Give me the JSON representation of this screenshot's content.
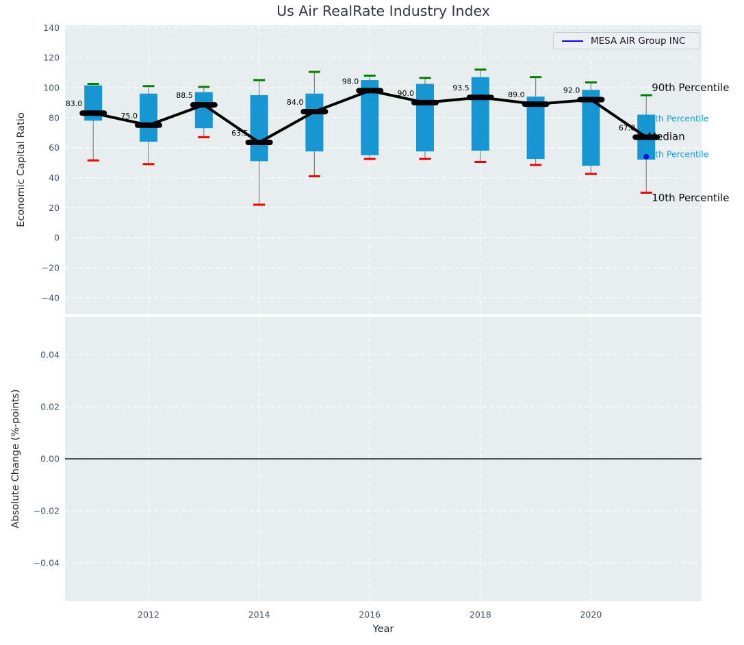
{
  "title": "Us Air RealRate Industry Index",
  "legend": {
    "label": "MESA AIR Group INC",
    "line_color": "#0808f0"
  },
  "axes": {
    "xlabel": "Year"
  },
  "styles": {
    "axes_bg": "#e8edee",
    "grid_color": "#ffffff",
    "tick_color": "#42506a",
    "figure_bg": "#ffffff"
  },
  "chart_data": [
    {
      "type": "box",
      "ylabel": "Economic Capital Ratio",
      "xlim": [
        2010.49,
        2022.0
      ],
      "ylim": [
        -51,
        141.5
      ],
      "grid": true,
      "xticks": [
        {
          "v": 2012,
          "label": "2012"
        },
        {
          "v": 2014,
          "label": "2014"
        },
        {
          "v": 2016,
          "label": "2016"
        },
        {
          "v": 2018,
          "label": "2018"
        },
        {
          "v": 2020,
          "label": "2020"
        }
      ],
      "yticks": [
        {
          "v": 140,
          "label": "140"
        },
        {
          "v": 120,
          "label": "120"
        },
        {
          "v": 100,
          "label": "100"
        },
        {
          "v": 80,
          "label": "80"
        },
        {
          "v": 60,
          "label": "60"
        },
        {
          "v": 40,
          "label": "40"
        },
        {
          "v": 20,
          "label": "20"
        },
        {
          "v": 0,
          "label": "0"
        },
        {
          "v": -20,
          "label": "−20"
        },
        {
          "v": -40,
          "label": "−40"
        }
      ],
      "years": [
        2011,
        2012,
        2013,
        2014,
        2015,
        2016,
        2017,
        2018,
        2019,
        2020,
        2021
      ],
      "p90": [
        102.5,
        101,
        100.5,
        105,
        110.5,
        108,
        106.5,
        112,
        107,
        103.5,
        95
      ],
      "q3": [
        101.5,
        96,
        97,
        95,
        96,
        105,
        102.5,
        107,
        94,
        98.5,
        82
      ],
      "median": [
        83.0,
        75.0,
        88.5,
        63.5,
        84.0,
        98.0,
        90.0,
        93.5,
        89.0,
        92.0,
        67.0
      ],
      "q1": [
        78,
        64,
        73,
        51,
        57.5,
        55,
        57.5,
        58,
        52.5,
        48,
        52
      ],
      "p10": [
        51.5,
        49,
        67,
        22,
        41,
        52.5,
        52.5,
        50.5,
        48.5,
        42.5,
        30
      ],
      "median_labels": [
        "83.0",
        "75.0",
        "88.5",
        "63.5",
        "84.0",
        "98.0",
        "90.0",
        "93.5",
        "89.0",
        "92.0",
        "67.0"
      ],
      "company_point": {
        "year": 2021,
        "value": 54
      },
      "annotations": [
        {
          "text": "90th Percentile",
          "value": 100.0,
          "size": "big",
          "dx": 8,
          "under_box": false
        },
        {
          "text": "75th Percentile",
          "value": 79.5,
          "size": "small",
          "dx": -3,
          "under_box": true
        },
        {
          "text": "Median",
          "value": 67.3,
          "size": "big",
          "dx": 2,
          "under_box": false
        },
        {
          "text": "25th Percentile",
          "value": 55.8,
          "size": "small",
          "dx": -3,
          "under_box": true
        },
        {
          "text": "10th Percentile",
          "value": 26.6,
          "size": "big",
          "dx": 8,
          "under_box": false
        }
      ],
      "colors": {
        "box": "#1697d3",
        "cap_top": "#008000",
        "cap_bottom": "#ee0000",
        "whisker": "#848484",
        "median_marker": "#000000",
        "trend_line": "#000000",
        "annotation_small": "#189fd9",
        "annotation_big": "#0d0d0d",
        "company_point": "#0a0ae0"
      }
    },
    {
      "type": "line",
      "ylabel": "Absolute Change (%-points)",
      "ylim": [
        -0.0547,
        0.0545
      ],
      "grid": true,
      "yticks": [
        {
          "v": 0.04,
          "label": "0.04"
        },
        {
          "v": 0.02,
          "label": "0.02"
        },
        {
          "v": 0.0,
          "label": "0.00"
        },
        {
          "v": -0.02,
          "label": "−0.02"
        },
        {
          "v": -0.04,
          "label": "−0.04"
        }
      ],
      "zero_line": 0.0,
      "series": []
    }
  ]
}
